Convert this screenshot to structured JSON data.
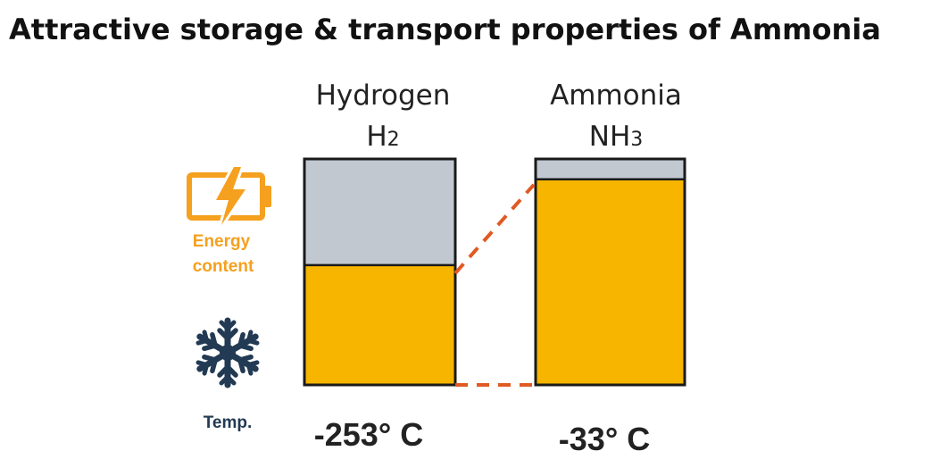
{
  "title": "Attractive storage & transport properties of  Ammonia",
  "colors": {
    "fill": "#f7b500",
    "empty": "#c2c8d0",
    "border": "#1a1a1a",
    "connector": "#e05a24",
    "energy": "#f5a01e",
    "snowflake": "#223a53"
  },
  "columns": [
    {
      "name": "Hydrogen",
      "formula_base": "H",
      "formula_sub": "2",
      "temp": "-253° C",
      "energy_fraction": 0.53
    },
    {
      "name": "Ammonia",
      "formula_base": "NH",
      "formula_sub": "3",
      "temp": "-33° C",
      "energy_fraction": 0.91
    }
  ],
  "rows": {
    "energy_label_line1": "Energy",
    "energy_label_line2": "content",
    "energy_icon": "battery-bolt-icon",
    "temp_label": "Temp.",
    "temp_icon": "snowflake-icon"
  }
}
